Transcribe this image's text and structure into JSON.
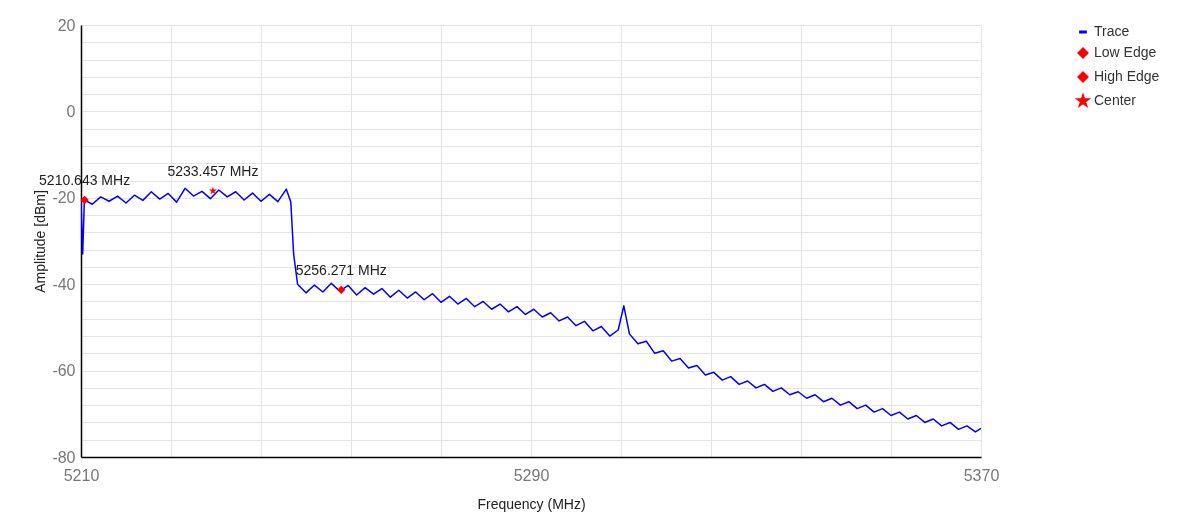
{
  "chart_data": {
    "type": "line",
    "xlabel": "Frequency (MHz)",
    "ylabel": "Amplitude [dBm]",
    "xlim": [
      5210,
      5370
    ],
    "ylim": [
      -80,
      20
    ],
    "xticks": [
      5210,
      {
        "value": 5226,
        "label": null
      },
      {
        "value": 5242,
        "label": null
      },
      {
        "value": 5258,
        "label": null
      },
      {
        "value": 5274,
        "label": null
      },
      5290,
      {
        "value": 5306,
        "label": null
      },
      {
        "value": 5322,
        "label": null
      },
      {
        "value": 5338,
        "label": null
      },
      {
        "value": 5354,
        "label": null
      },
      5370
    ],
    "yticks": [
      -80,
      {
        "value": -76,
        "label": null
      },
      {
        "value": -72,
        "label": null
      },
      {
        "value": -68,
        "label": null
      },
      {
        "value": -64,
        "label": null
      },
      -60,
      {
        "value": -56,
        "label": null
      },
      {
        "value": -52,
        "label": null
      },
      {
        "value": -48,
        "label": null
      },
      {
        "value": -44,
        "label": null
      },
      -40,
      {
        "value": -36,
        "label": null
      },
      {
        "value": -32,
        "label": null
      },
      {
        "value": -28,
        "label": null
      },
      {
        "value": -24,
        "label": null
      },
      -20,
      {
        "value": -16,
        "label": null
      },
      {
        "value": -12,
        "label": null
      },
      {
        "value": -8,
        "label": null
      },
      {
        "value": -4,
        "label": null
      },
      0,
      {
        "value": 4,
        "label": null
      },
      {
        "value": 8,
        "label": null
      },
      {
        "value": 12,
        "label": null
      },
      {
        "value": 16,
        "label": null
      },
      20
    ],
    "grid": true,
    "legend": "top right",
    "series": [
      {
        "name": "Trace",
        "color": "#0000ff",
        "marker": "none",
        "x": [
          5210,
          5210.3,
          5210.6,
          5212,
          5213.5,
          5215,
          5216.5,
          5218,
          5219.5,
          5221,
          5222.5,
          5224,
          5225.5,
          5227,
          5228.5,
          5230,
          5231.5,
          5233,
          5234.5,
          5236,
          5237.5,
          5239,
          5240.5,
          5242,
          5243.5,
          5245,
          5246.5,
          5247.3,
          5247.8,
          5248.5,
          5250,
          5251.5,
          5253,
          5254.5,
          5256,
          5257.5,
          5259,
          5260.5,
          5262,
          5263.5,
          5265,
          5266.5,
          5268,
          5269.5,
          5271,
          5272.5,
          5274,
          5275.5,
          5277,
          5278.5,
          5280,
          5281.5,
          5283,
          5284.5,
          5286,
          5287.5,
          5289,
          5290.5,
          5292,
          5293.5,
          5295,
          5296.5,
          5298,
          5299.5,
          5301,
          5302.5,
          5304,
          5305.5,
          5306.5,
          5307.5,
          5309,
          5310.5,
          5312,
          5313.5,
          5315,
          5316.5,
          5318,
          5319.5,
          5321,
          5322.5,
          5324,
          5325.5,
          5327,
          5328.5,
          5330,
          5331.5,
          5333,
          5334.5,
          5336,
          5337.5,
          5339,
          5340.5,
          5342,
          5343.5,
          5345,
          5346.5,
          5348,
          5349.5,
          5351,
          5352.5,
          5354,
          5355.5,
          5357,
          5358.5,
          5360,
          5361.5,
          5363,
          5364.5,
          5366,
          5367.5,
          5369,
          5370
        ],
        "values": [
          -21,
          -33,
          -20.5,
          -21.5,
          -19.8,
          -20.8,
          -19.6,
          -21.2,
          -19.4,
          -20.6,
          -18.6,
          -20.3,
          -19,
          -21,
          -17.8,
          -19.6,
          -18.5,
          -20.2,
          -18.2,
          -19.8,
          -18.6,
          -20.5,
          -18.9,
          -20.8,
          -19.2,
          -20.9,
          -18,
          -21,
          -33,
          -40,
          -42,
          -40.2,
          -41.8,
          -39.8,
          -41.6,
          -40.3,
          -42.5,
          -40.8,
          -42.3,
          -41,
          -43,
          -41.4,
          -43.2,
          -41.8,
          -43.6,
          -42.2,
          -44.2,
          -42.8,
          -44.6,
          -43.3,
          -45.2,
          -44,
          -45.8,
          -44.6,
          -46.4,
          -45.2,
          -47,
          -45.8,
          -47.6,
          -46.6,
          -48.5,
          -47.6,
          -49.6,
          -48.6,
          -50.8,
          -49.8,
          -52,
          -50.6,
          -45,
          -51.5,
          -53.8,
          -53.2,
          -56,
          -55.4,
          -57.8,
          -57.2,
          -59.4,
          -58.8,
          -61,
          -60.4,
          -62.2,
          -61.4,
          -63.2,
          -62.4,
          -64,
          -63.2,
          -64.8,
          -64,
          -65.6,
          -64.9,
          -66.4,
          -65.6,
          -67.2,
          -66.4,
          -68,
          -67.2,
          -68.8,
          -68,
          -69.6,
          -68.8,
          -70.4,
          -69.6,
          -71.2,
          -70.4,
          -72,
          -71.2,
          -72.8,
          -72,
          -73.6,
          -72.8,
          -74.2,
          -73.4
        ]
      },
      {
        "name": "Low Edge",
        "type": "scatter",
        "color": "#ff0000",
        "marker": "diamond",
        "x": [
          5210.643
        ],
        "values": [
          -20.5
        ]
      },
      {
        "name": "High Edge",
        "type": "scatter",
        "color": "#ff0000",
        "marker": "diamond",
        "x": [
          5256.271
        ],
        "values": [
          -41.3
        ]
      },
      {
        "name": "Center",
        "type": "scatter",
        "color": "#ff0000",
        "marker": "star",
        "x": [
          5233.457
        ],
        "values": [
          -18.4
        ]
      }
    ],
    "annotations": [
      {
        "text": "5210.643 MHz",
        "x": 5210.643,
        "y": -20.5
      },
      {
        "text": "5233.457 MHz",
        "x": 5233.457,
        "y": -18.4
      },
      {
        "text": "5256.271 MHz",
        "x": 5256.271,
        "y": -41.3
      }
    ]
  }
}
